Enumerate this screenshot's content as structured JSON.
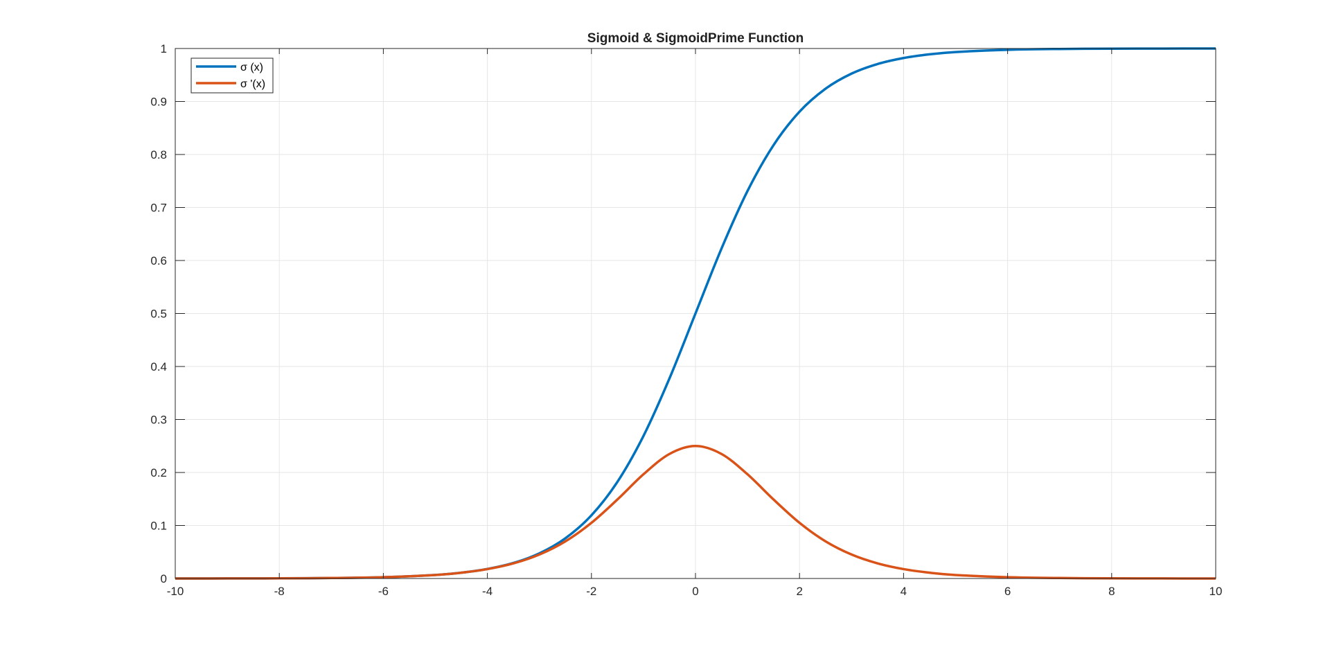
{
  "chart_data": {
    "type": "line",
    "title": "Sigmoid & SigmoidPrime Function",
    "xlabel": "",
    "ylabel": "",
    "xlim": [
      -10,
      10
    ],
    "ylim": [
      0,
      1
    ],
    "xticks": [
      -10,
      -8,
      -6,
      -4,
      -2,
      0,
      2,
      4,
      6,
      8,
      10
    ],
    "yticks": [
      0,
      0.1,
      0.2,
      0.3,
      0.4,
      0.5,
      0.6,
      0.7,
      0.8,
      0.9,
      1
    ],
    "grid": true,
    "legend_position": "top-left",
    "x": [
      -10,
      -9,
      -8,
      -7,
      -6,
      -5,
      -4.5,
      -4,
      -3.5,
      -3,
      -2.5,
      -2,
      -1.5,
      -1,
      -0.5,
      0,
      0.5,
      1,
      1.5,
      2,
      2.5,
      3,
      3.5,
      4,
      4.5,
      5,
      6,
      7,
      8,
      9,
      10
    ],
    "series": [
      {
        "name": "σ (x)",
        "color": "#0072BD",
        "values": [
          0.0,
          0.0001,
          0.0003,
          0.0009,
          0.0025,
          0.0067,
          0.011,
          0.018,
          0.0293,
          0.0474,
          0.0759,
          0.1192,
          0.1824,
          0.2689,
          0.3775,
          0.5,
          0.6225,
          0.7311,
          0.8176,
          0.8808,
          0.9241,
          0.9526,
          0.9707,
          0.982,
          0.989,
          0.9933,
          0.9975,
          0.9991,
          0.9997,
          0.9999,
          1.0
        ]
      },
      {
        "name": "σ '(x)",
        "color": "#D95319",
        "values": [
          0.0,
          0.0001,
          0.0003,
          0.0009,
          0.0025,
          0.0066,
          0.0109,
          0.0177,
          0.0285,
          0.0452,
          0.0701,
          0.105,
          0.1491,
          0.1966,
          0.235,
          0.25,
          0.235,
          0.1966,
          0.1491,
          0.105,
          0.0701,
          0.0452,
          0.0285,
          0.0177,
          0.0109,
          0.0066,
          0.0025,
          0.0009,
          0.0003,
          0.0001,
          0.0
        ]
      }
    ]
  }
}
